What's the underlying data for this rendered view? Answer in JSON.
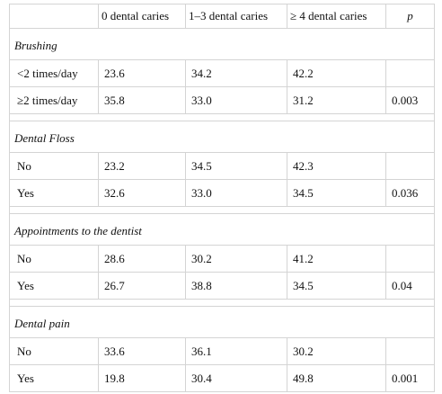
{
  "headers": [
    "",
    "0 dental caries",
    "1–3 dental caries",
    "≥ 4 dental caries",
    "p"
  ],
  "sections": [
    {
      "title": "Brushing",
      "rows": [
        {
          "label": "<2 times/day",
          "v0": "23.6",
          "v13": "34.2",
          "v4": "42.2",
          "p": ""
        },
        {
          "label": "≥2 times/day",
          "v0": "35.8",
          "v13": "33.0",
          "v4": "31.2",
          "p": "0.003"
        }
      ]
    },
    {
      "title": "Dental Floss",
      "rows": [
        {
          "label": "No",
          "v0": "23.2",
          "v13": "34.5",
          "v4": "42.3",
          "p": ""
        },
        {
          "label": "Yes",
          "v0": "32.6",
          "v13": "33.0",
          "v4": "34.5",
          "p": "0.036"
        }
      ]
    },
    {
      "title": "Appointments to the dentist",
      "rows": [
        {
          "label": "No",
          "v0": "28.6",
          "v13": "30.2",
          "v4": "41.2",
          "p": ""
        },
        {
          "label": "Yes",
          "v0": "26.7",
          "v13": "38.8",
          "v4": "34.5",
          "p": "0.04"
        }
      ]
    },
    {
      "title": "Dental pain",
      "rows": [
        {
          "label": "No",
          "v0": "33.6",
          "v13": "36.1",
          "v4": "30.2",
          "p": ""
        },
        {
          "label": "Yes",
          "v0": "19.8",
          "v13": "30.4",
          "v4": "49.8",
          "p": "0.001"
        }
      ]
    }
  ]
}
